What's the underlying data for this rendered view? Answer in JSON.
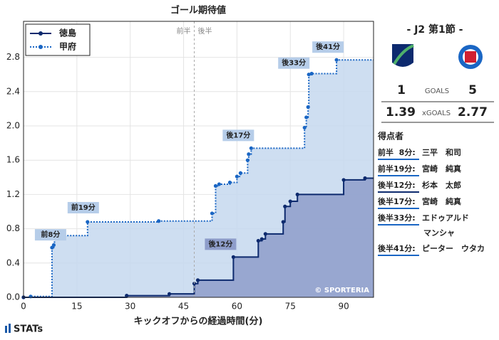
{
  "chart_data": {
    "type": "step",
    "title": "ゴール期待値",
    "x_label": "キックオフからの経過時間(分)",
    "xlim": [
      0,
      98.4
    ],
    "xticks": [
      0,
      15,
      30,
      45,
      60,
      75,
      90
    ],
    "ylim": [
      0,
      3.22
    ],
    "yticks": [
      {
        "value": 0,
        "label": "0.0"
      },
      0.4,
      0.8,
      1.2,
      1.6,
      {
        "value": 2,
        "label": "2.0"
      },
      2.4,
      2.8
    ],
    "grid": true,
    "legend": "upper left",
    "halves": {
      "x": 48,
      "labels": [
        "前半",
        "後半"
      ]
    },
    "series": [
      {
        "name": "徳島",
        "color": "#0d2a6e",
        "area_color": "#8e9dca",
        "line": "solid",
        "x": [
          0,
          29,
          41,
          48,
          49,
          59,
          66,
          67,
          68,
          73,
          73.5,
          75,
          77,
          90,
          96
        ],
        "values": [
          0,
          0.02,
          0.04,
          0.16,
          0.2,
          0.47,
          0.66,
          0.68,
          0.74,
          0.88,
          1.06,
          1.12,
          1.2,
          1.37,
          1.39
        ]
      },
      {
        "name": "甲府",
        "color": "#1a66c4",
        "area_color": "#c6d8ee",
        "line": "dotted",
        "x": [
          0,
          2,
          8,
          8.5,
          8.7,
          18,
          38,
          53,
          54,
          55,
          58,
          60,
          61,
          63,
          63.3,
          64,
          79,
          79.5,
          80,
          80.2,
          81,
          88
        ],
        "values": [
          0,
          0.01,
          0.58,
          0.61,
          0.72,
          0.88,
          0.89,
          0.98,
          1.3,
          1.32,
          1.34,
          1.41,
          1.45,
          1.6,
          1.67,
          1.74,
          1.98,
          2.1,
          2.22,
          2.6,
          2.61,
          2.77
        ]
      }
    ],
    "annotations": [
      {
        "text": "前8分",
        "x": 8,
        "y": 0.58
      },
      {
        "text": "前19分",
        "x": 18,
        "y": 0.88
      },
      {
        "text": "後12分",
        "x": 59,
        "y": 0.47
      },
      {
        "text": "後17分",
        "x": 64,
        "y": 1.74
      },
      {
        "text": "後33分",
        "x": 80,
        "y": 2.6
      },
      {
        "text": "後41分",
        "x": 88,
        "y": 2.77
      }
    ],
    "credit": "© SPORTERIA"
  },
  "match": {
    "round": "- J2 第1節 -",
    "goals_label": "GOALS",
    "xg_label": "xGOALS",
    "home_goals": "1",
    "away_goals": "5",
    "home_xg": "1.39",
    "away_xg": "2.77",
    "home_logo": "TOKUSHIMA VORTIS",
    "scorers_title": "得点者",
    "scorers": [
      {
        "time": "前半  8分:",
        "name_lines": [
          "三平　和司"
        ],
        "color": "#1a66c4"
      },
      {
        "time": "前半19分:",
        "name_lines": [
          "宮崎　純真"
        ],
        "color": "#1a66c4"
      },
      {
        "time": "後半12分:",
        "name_lines": [
          "杉本　太郎"
        ],
        "color": "#0d2a6e"
      },
      {
        "time": "後半17分:",
        "name_lines": [
          "宮崎　純真"
        ],
        "color": "#1a66c4"
      },
      {
        "time": "後半33分:",
        "name_lines": [
          "エドゥアルド",
          "マンシャ"
        ],
        "color": "#1a66c4"
      },
      {
        "time": "後半41分:",
        "name_lines": [
          "ピーター　ウタカ"
        ],
        "color": "#1a66c4"
      }
    ]
  },
  "brand": "STATs"
}
